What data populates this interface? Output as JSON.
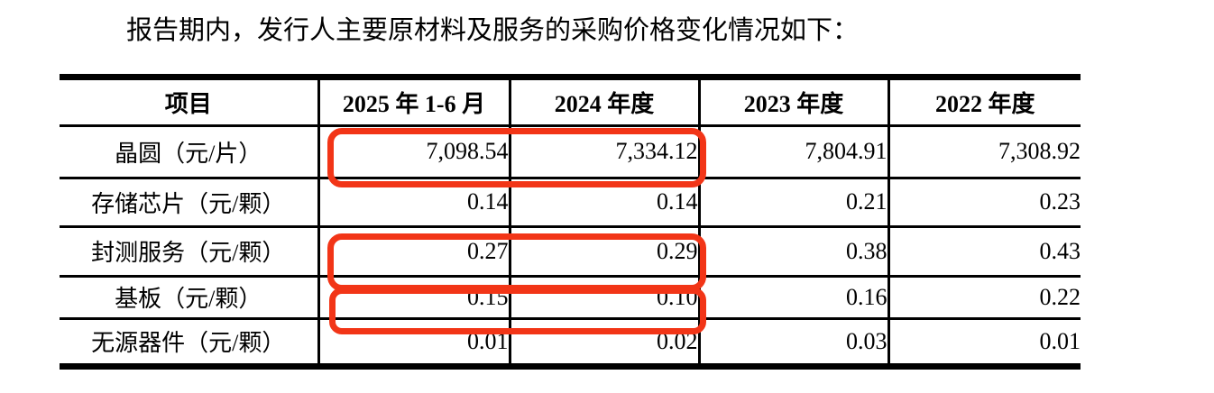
{
  "page": {
    "intro": "报告期内，发行人主要原材料及服务的采购价格变化情况如下："
  },
  "colors": {
    "highlight": "#f23517",
    "text": "#000000",
    "background": "#ffffff",
    "table_border": "#000000"
  },
  "table": {
    "headers": [
      "项目",
      "2025 年 1-6 月",
      "2024 年度",
      "2023 年度",
      "2022 年度"
    ],
    "rows": [
      {
        "label": "晶圆（元/片）",
        "values": [
          "7,098.54",
          "7,334.12",
          "7,804.91",
          "7,308.92"
        ]
      },
      {
        "label": "存储芯片（元/颗）",
        "values": [
          "0.14",
          "0.14",
          "0.21",
          "0.23"
        ]
      },
      {
        "label": "封测服务（元/颗）",
        "values": [
          "0.27",
          "0.29",
          "0.38",
          "0.43"
        ]
      },
      {
        "label": "基板（元/颗）",
        "values": [
          "0.15",
          "0.10",
          "0.16",
          "0.22"
        ]
      },
      {
        "label": "无源器件（元/颗）",
        "values": [
          "0.01",
          "0.02",
          "0.03",
          "0.01"
        ]
      }
    ],
    "annotations": {
      "shape": "red-rounded-rectangle",
      "highlighted": [
        {
          "row": "晶圆（元/片）",
          "columns": [
            "2025 年 1-6 月",
            "2024 年度"
          ]
        },
        {
          "row": "封测服务（元/颗）",
          "columns": [
            "2025 年 1-6 月",
            "2024 年度"
          ]
        },
        {
          "row": "基板（元/颗）",
          "columns": [
            "2025 年 1-6 月",
            "2024 年度"
          ]
        }
      ]
    }
  }
}
